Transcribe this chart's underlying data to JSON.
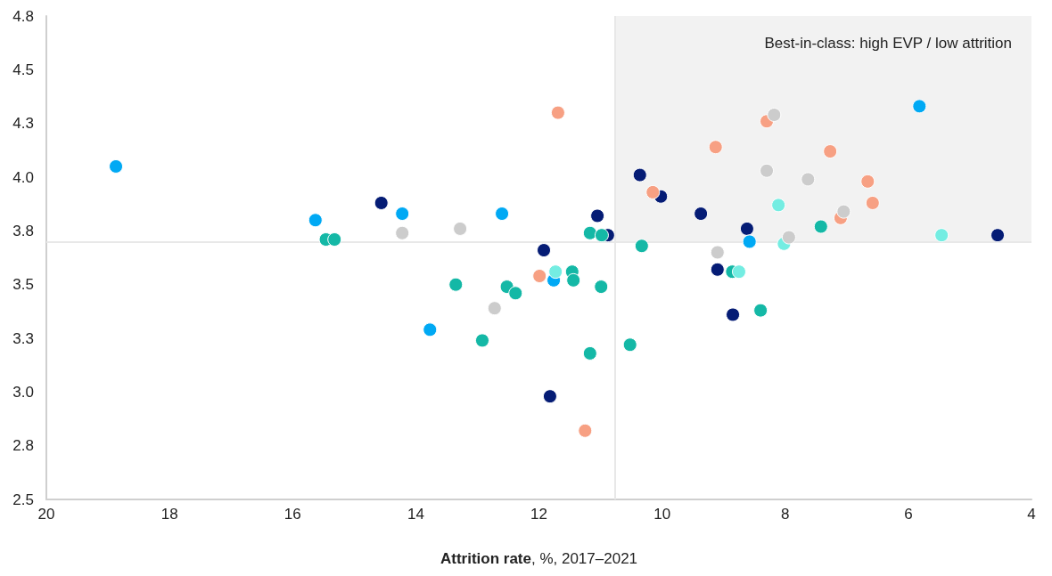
{
  "chart_data": {
    "type": "scatter",
    "xlabel": "Attrition rate, %, 2017–2021",
    "xlim": [
      20,
      4
    ],
    "xticks": [
      20,
      18,
      16,
      14,
      12,
      10,
      8,
      6,
      4
    ],
    "ylim": [
      2.5,
      4.75
    ],
    "yticks": [
      2.5,
      {
        "value": 2.75,
        "label": "2.8"
      },
      {
        "value": 3,
        "label": "3.0"
      },
      {
        "value": 3.25,
        "label": "3.3"
      },
      3.5,
      {
        "value": 3.75,
        "label": "3.8"
      },
      {
        "value": 4,
        "label": "4.0"
      },
      {
        "value": 4.25,
        "label": "4.3"
      },
      4.5,
      {
        "value": 4.75,
        "label": "4.8"
      }
    ],
    "marker": "circle",
    "ref_lines": [
      {
        "axis": "x",
        "value": 10.76,
        "color": "#e8e8e8"
      },
      {
        "axis": "y",
        "value": 3.7,
        "color": "#e8e8e8"
      }
    ],
    "bands": [
      {
        "axis": "x",
        "from": 10.76,
        "to": 4,
        "label": "Best-in-class: high EVP / low attrition",
        "color": "#f2f2f2"
      }
    ],
    "series": [
      {
        "color": "#051c75",
        "x": [
          14.56,
          11.92,
          11.05,
          10.88,
          10.36,
          10.02,
          9.37,
          8.62,
          9.1,
          8.85,
          11.82,
          4.55
        ],
        "values": [
          3.88,
          3.66,
          3.82,
          3.73,
          4.01,
          3.91,
          3.83,
          3.76,
          3.57,
          3.36,
          2.98,
          3.73
        ]
      },
      {
        "color": "#00a9f4",
        "x": [
          18.87,
          15.63,
          14.22,
          12.6,
          13.77,
          11.76,
          8.58,
          5.82
        ],
        "values": [
          4.05,
          3.8,
          3.83,
          3.83,
          3.29,
          3.52,
          3.7,
          4.33
        ]
      },
      {
        "color": "#14b8a6",
        "x": [
          15.46,
          15.32,
          13.35,
          12.52,
          12.38,
          12.92,
          11.46,
          11.44,
          11.17,
          10.99,
          10.98,
          11.17,
          10.33,
          10.52,
          8.86,
          8.4,
          7.42
        ],
        "values": [
          3.71,
          3.71,
          3.5,
          3.49,
          3.46,
          3.24,
          3.56,
          3.52,
          3.74,
          3.49,
          3.73,
          3.18,
          3.68,
          3.22,
          3.56,
          3.38,
          3.77
        ]
      },
      {
        "color": "#74ede2",
        "x": [
          11.73,
          8.75,
          8.11,
          8.02,
          5.46
        ],
        "values": [
          3.56,
          3.56,
          3.87,
          3.69,
          3.73
        ]
      },
      {
        "color": "#f7a083",
        "x": [
          11.69,
          11.99,
          11.25,
          10.15,
          9.13,
          8.3,
          7.27,
          7.1,
          6.66,
          6.58
        ],
        "values": [
          4.3,
          3.54,
          2.82,
          3.93,
          4.14,
          4.26,
          4.12,
          3.81,
          3.98,
          3.88
        ]
      },
      {
        "color": "#cccccc",
        "x": [
          14.22,
          13.28,
          12.72,
          9.1,
          8.3,
          8.18,
          7.63,
          7.94,
          7.05
        ],
        "values": [
          3.74,
          3.76,
          3.39,
          3.65,
          4.03,
          4.29,
          3.99,
          3.72,
          3.84
        ]
      }
    ]
  }
}
